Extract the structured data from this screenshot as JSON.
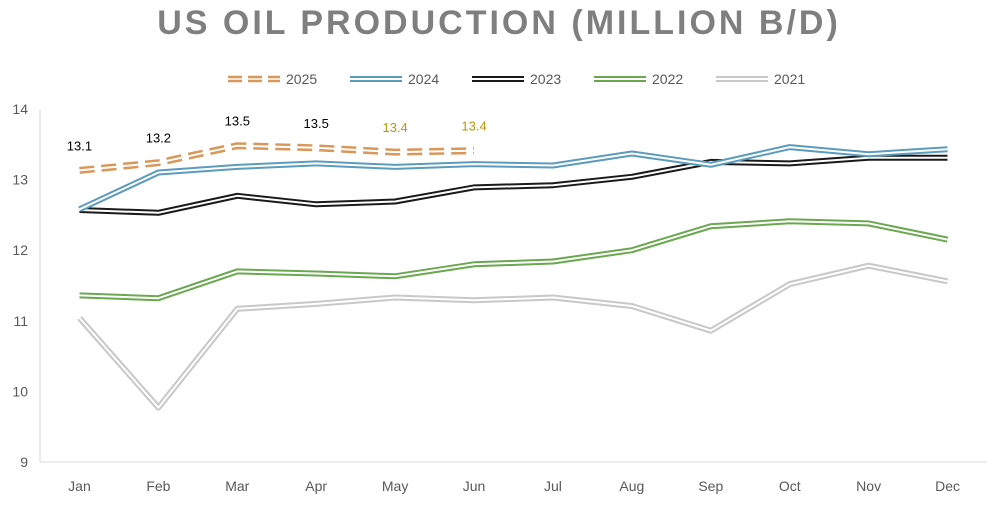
{
  "chart_data": {
    "type": "line",
    "title": "US OIL PRODUCTION (MILLION B/D)",
    "xlabel": "",
    "ylabel": "",
    "categories": [
      "Jan",
      "Feb",
      "Mar",
      "Apr",
      "May",
      "Jun",
      "Jul",
      "Aug",
      "Sep",
      "Oct",
      "Nov",
      "Dec"
    ],
    "ylim": [
      9,
      14
    ],
    "yticks": [
      "9",
      "10",
      "11",
      "12",
      "13",
      "14"
    ],
    "grid": false,
    "legend_position": "top",
    "series": [
      {
        "name": "2025",
        "color": "#d9975a",
        "dashed": true,
        "values": [
          13.13,
          13.24,
          13.48,
          13.45,
          13.39,
          13.41,
          null,
          null,
          null,
          null,
          null,
          null
        ],
        "labels": [
          "13.1",
          "13.2",
          "13.5",
          "13.5",
          "13.4",
          "13.4"
        ],
        "label_colors": [
          "#000000",
          "#000000",
          "#000000",
          "#000000",
          "#b8960c",
          "#b8960c"
        ]
      },
      {
        "name": "2024",
        "color": "#5b9bbd",
        "dashed": false,
        "values": [
          12.58,
          13.1,
          13.18,
          13.23,
          13.18,
          13.22,
          13.2,
          13.37,
          13.21,
          13.46,
          13.36,
          13.43
        ]
      },
      {
        "name": "2023",
        "color": "#1a1a1a",
        "dashed": false,
        "values": [
          12.57,
          12.53,
          12.77,
          12.65,
          12.69,
          12.89,
          12.92,
          13.04,
          13.25,
          13.23,
          13.31,
          13.31
        ]
      },
      {
        "name": "2022",
        "color": "#6aa84f",
        "dashed": false,
        "values": [
          11.36,
          11.32,
          11.7,
          11.67,
          11.63,
          11.8,
          11.84,
          12.0,
          12.34,
          12.41,
          12.38,
          12.15
        ]
      },
      {
        "name": "2021",
        "color": "#c8c8c8",
        "dashed": false,
        "values": [
          11.04,
          9.77,
          11.17,
          11.24,
          11.33,
          11.29,
          11.33,
          11.21,
          10.86,
          11.52,
          11.78,
          11.56
        ]
      }
    ]
  }
}
